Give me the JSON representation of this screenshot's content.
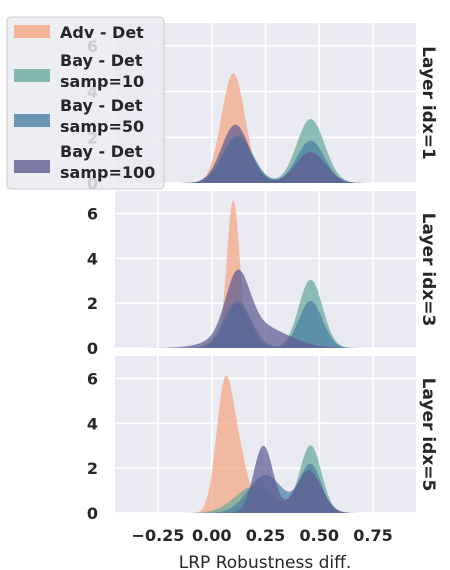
{
  "chart_data": {
    "type": "area",
    "xlabel": "LRP Robustness diff.",
    "xlim": [
      -0.45,
      0.95
    ],
    "ylim": [
      0,
      7
    ],
    "x_ticks": [
      -0.25,
      0.0,
      0.25,
      0.5,
      0.75
    ],
    "x_tick_labels": [
      "−0.25",
      "0.00",
      "0.25",
      "0.50",
      "0.75"
    ],
    "y_ticks": [
      0,
      2,
      4,
      6
    ],
    "grid": true,
    "legend": {
      "placement": "top-left"
    },
    "series_styles": [
      {
        "name": "Adv - Det",
        "color": "#f4a582"
      },
      {
        "name": "Bay - Det\nsamp=10",
        "color": "#66a99b"
      },
      {
        "name": "Bay - Det\nsamp=50",
        "color": "#4a7fa3"
      },
      {
        "name": "Bay - Det\nsamp=100",
        "color": "#5e5c91"
      }
    ],
    "panels": [
      {
        "title": "Layer idx=1",
        "series": [
          {
            "name": "Adv - Det",
            "components": [
              [
                4.8,
                0.1,
                0.055
              ]
            ]
          },
          {
            "name": "Bay - Det\nsamp=10",
            "components": [
              [
                2.1,
                0.12,
                0.07
              ],
              [
                2.8,
                0.46,
                0.065
              ]
            ]
          },
          {
            "name": "Bay - Det\nsamp=50",
            "components": [
              [
                2.0,
                0.12,
                0.07
              ],
              [
                1.85,
                0.46,
                0.065
              ]
            ]
          },
          {
            "name": "Bay - Det\nsamp=100",
            "components": [
              [
                2.55,
                0.11,
                0.065
              ],
              [
                1.35,
                0.46,
                0.07
              ]
            ]
          }
        ]
      },
      {
        "title": "Layer idx=3",
        "series": [
          {
            "name": "Adv - Det",
            "components": [
              [
                6.6,
                0.1,
                0.03
              ]
            ]
          },
          {
            "name": "Bay - Det\nsamp=10",
            "components": [
              [
                2.1,
                0.12,
                0.065
              ],
              [
                3.05,
                0.46,
                0.055
              ]
            ]
          },
          {
            "name": "Bay - Det\nsamp=50",
            "components": [
              [
                2.0,
                0.12,
                0.06
              ],
              [
                2.1,
                0.46,
                0.055
              ]
            ]
          },
          {
            "name": "Bay - Det\nsamp=100",
            "components": [
              [
                2.6,
                0.12,
                0.055
              ],
              [
                1.05,
                0.2,
                0.14
              ]
            ]
          }
        ]
      },
      {
        "title": "Layer idx=5",
        "series": [
          {
            "name": "Adv - Det",
            "components": [
              [
                5.4,
                0.06,
                0.04
              ],
              [
                2.2,
                0.13,
                0.045
              ]
            ]
          },
          {
            "name": "Bay - Det\nsamp=10",
            "components": [
              [
                1.2,
                0.2,
                0.09
              ],
              [
                3.0,
                0.46,
                0.05
              ]
            ]
          },
          {
            "name": "Bay - Det\nsamp=50",
            "components": [
              [
                1.7,
                0.25,
                0.08
              ],
              [
                2.15,
                0.46,
                0.05
              ]
            ]
          },
          {
            "name": "Bay - Det\nsamp=100",
            "components": [
              [
                3.0,
                0.24,
                0.045
              ],
              [
                1.9,
                0.45,
                0.06
              ]
            ]
          }
        ]
      }
    ]
  }
}
